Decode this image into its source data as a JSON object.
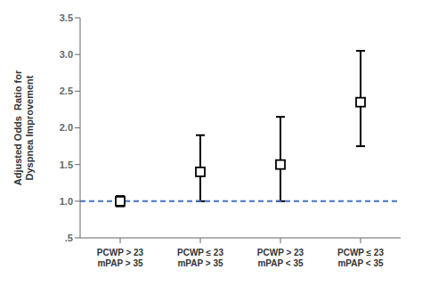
{
  "chart_data": {
    "type": "errorbar",
    "categories": [
      "PCWP > 23\nmPAP > 35",
      "PCWP ≤ 23\nmPAP > 35",
      "PCWP > 23\nmPAP < 35",
      "PCWP ≤ 23\nmPAP < 35"
    ],
    "values": [
      1.0,
      1.4,
      1.5,
      2.35
    ],
    "lower": [
      0.93,
      1.0,
      1.0,
      1.75
    ],
    "upper": [
      1.07,
      1.9,
      2.15,
      3.05
    ],
    "ylabel": "Adjusted Odds  Ratio for\nDyspnea Improvement",
    "ylim": [
      0.5,
      3.5
    ],
    "yticks": [
      {
        "value": 0.5,
        "label": ".5"
      },
      {
        "value": 1.0,
        "label": "1.0"
      },
      1.5,
      {
        "value": 2.0,
        "label": "2.0"
      },
      2.5,
      {
        "value": 3.0,
        "label": "3.0"
      },
      3.5
    ],
    "reference_line": {
      "value": 1.0,
      "color": "#4472C4"
    },
    "color": "black",
    "marker": "square",
    "grid": false
  }
}
